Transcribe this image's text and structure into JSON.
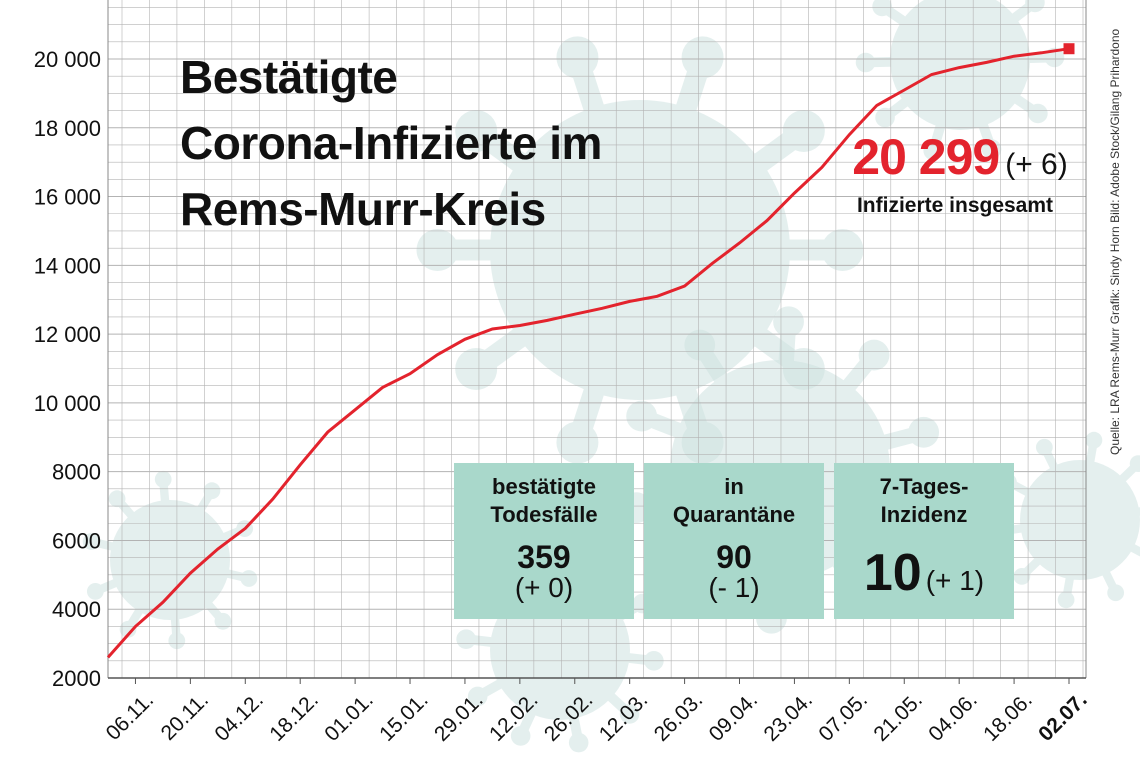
{
  "title_lines": [
    "Bestätigte",
    "Corona-Infizierte im",
    "Rems-Murr-Kreis"
  ],
  "total": {
    "value": "20 299",
    "change": "(+ 6)",
    "label": "Infizierte insgesamt"
  },
  "credit": "Quelle: LRA Rems-Murr    Grafik: Sindy Horn    Bild: Adobe Stock/Gilang Prihardono",
  "boxes": [
    {
      "label": "bestätigte\nTodesfälle",
      "value": "359",
      "change": "(+ 0)"
    },
    {
      "label": "in\nQuarantäne",
      "value": "90",
      "change": "(- 1)"
    },
    {
      "label": "7-Tages-\nInzidenz",
      "value": "10",
      "change": "(+ 1)"
    }
  ],
  "colors": {
    "line": "#e3232d",
    "box": "#a9d8cb",
    "grid": "#b3b3b3",
    "virus": "#cfe3e1"
  },
  "chart_data": {
    "type": "line",
    "title": "Bestätigte Corona-Infizierte im Rems-Murr-Kreis",
    "xlabel": "",
    "ylabel": "",
    "ylim": [
      2000,
      20000
    ],
    "yticks": [
      2000,
      4000,
      6000,
      8000,
      10000,
      12000,
      14000,
      16000,
      18000,
      20000
    ],
    "ytick_labels": [
      "2000",
      "4000",
      "6000",
      "8000",
      "10 000",
      "12 000",
      "14 000",
      "16 000",
      "18 000",
      "20 000"
    ],
    "x_labels": [
      "06.11.",
      "20.11.",
      "04.12.",
      "18.12.",
      "01.01.",
      "15.01.",
      "29.01.",
      "12.02.",
      "26.02.",
      "12.03.",
      "26.03.",
      "09.04.",
      "23.04.",
      "07.05.",
      "21.05.",
      "04.06.",
      "18.06.",
      "02.07."
    ],
    "grid": true,
    "series": [
      {
        "x": [
          "30.10.",
          "06.11.",
          "13.11.",
          "20.11.",
          "27.11.",
          "04.12.",
          "11.12.",
          "18.12.",
          "25.12.",
          "01.01.",
          "08.01.",
          "15.01.",
          "22.01.",
          "29.01.",
          "05.02.",
          "12.02.",
          "19.02.",
          "26.02.",
          "05.03.",
          "12.03.",
          "19.03.",
          "26.03.",
          "02.04.",
          "09.04.",
          "16.04.",
          "23.04.",
          "30.04.",
          "07.05.",
          "14.05.",
          "21.05.",
          "28.05.",
          "04.06.",
          "11.06.",
          "18.06.",
          "25.06.",
          "02.07."
        ],
        "values": [
          2600,
          3500,
          4200,
          5050,
          5750,
          6350,
          7200,
          8200,
          9150,
          9800,
          10450,
          10850,
          11400,
          11850,
          12150,
          12250,
          12400,
          12580,
          12750,
          12950,
          13100,
          13400,
          14050,
          14650,
          15300,
          16100,
          16850,
          17800,
          18650,
          19100,
          19550,
          19750,
          19900,
          20080,
          20180,
          20299
        ]
      }
    ]
  }
}
